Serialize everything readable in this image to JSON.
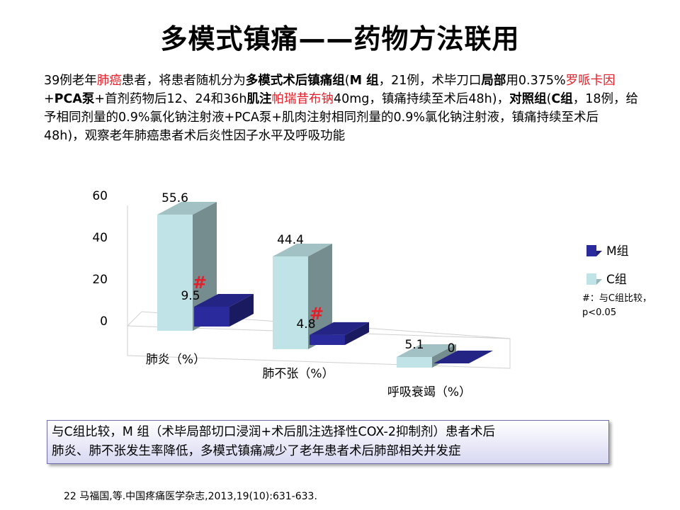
{
  "slide": {
    "title": "多模式镇痛——药物方法联用",
    "intro": [
      {
        "text": "39例老年",
        "style": "n"
      },
      {
        "text": "肺癌",
        "style": "r"
      },
      {
        "text": "患者，将患者随机分为",
        "style": "n"
      },
      {
        "text": "多模式术后镇痛组",
        "style": "b"
      },
      {
        "text": "(",
        "style": "n"
      },
      {
        "text": "M 组",
        "style": "b"
      },
      {
        "text": "，21例，术毕刀口",
        "style": "n"
      },
      {
        "text": "局部",
        "style": "b"
      },
      {
        "text": "用0.375%",
        "style": "n"
      },
      {
        "text": "罗哌卡因",
        "style": "r"
      },
      {
        "text": "+",
        "style": "n"
      },
      {
        "text": "PCA泵",
        "style": "b"
      },
      {
        "text": "+首剂药物后12、24和36h",
        "style": "n"
      },
      {
        "text": "肌注",
        "style": "b"
      },
      {
        "text": "帕瑞昔布钠",
        "style": "r"
      },
      {
        "text": "40mg，镇痛持续至术后48h)，",
        "style": "n"
      },
      {
        "text": "对照组",
        "style": "b"
      },
      {
        "text": "(",
        "style": "n"
      },
      {
        "text": "C组",
        "style": "b"
      },
      {
        "text": "，18例，给予相同剂量的0.9%氯化钠注射液+PCA泵+肌肉注射相同剂量的0.9%氯化钠注射液，镇痛持续至术后48h)，观察老年肺癌患者术后炎性因子水平及呼吸功能",
        "style": "n"
      }
    ],
    "significance_note_line1": "#：与C组比较，",
    "significance_note_line2": "p<0.05",
    "significance_mark": "#",
    "conclusion_line1": "与C组比较，M 组（术毕局部切口浸润+术后肌注选择性COX-2抑制剂）患者术后",
    "conclusion_line2": "肺炎、肺不张发生率降低，多模式镇痛减少了老年患者术后肺部相关并发症",
    "reference": "22 马福国,等.中国疼痛医学杂志,2013,19(10):631-633."
  },
  "chart_data": {
    "type": "bar",
    "style": "3d-clustered-column",
    "categories": [
      "肺炎（%）",
      "肺不张（%）",
      "呼吸衰竭（%）"
    ],
    "series": [
      {
        "name": "C组",
        "values": [
          55.6,
          44.4,
          5.1
        ],
        "color": "#bfe3e6"
      },
      {
        "name": "M组",
        "values": [
          9.5,
          4.8,
          0
        ],
        "color": "#2a2a9c"
      }
    ],
    "y_ticks": [
      "0",
      "20",
      "40",
      "60"
    ],
    "ylim": [
      0,
      60
    ],
    "legend_position": "right",
    "significant_categories": [
      0,
      1
    ],
    "significance_color": "#e3202a"
  }
}
